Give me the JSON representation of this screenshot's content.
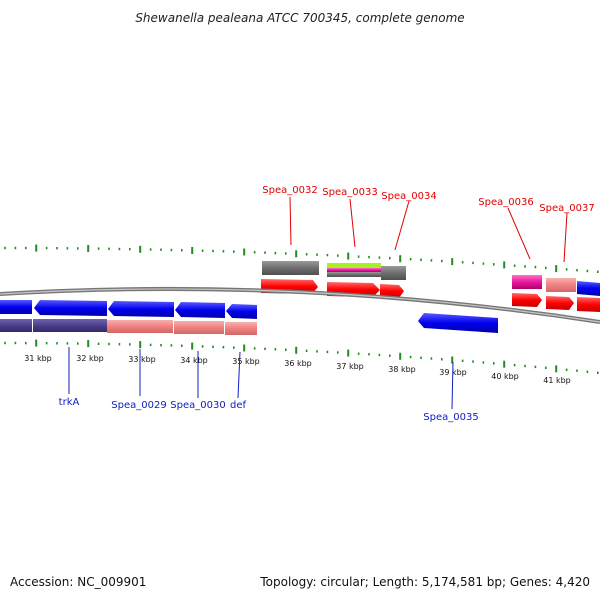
{
  "title": "Shewanella pealeana ATCC 700345, complete genome",
  "footer": {
    "accession": "Accession: NC_009901",
    "topology": "Topology: circular; Length: 5,174,581 bp; Genes: 4,420"
  },
  "colors": {
    "forward_cds": "#ff0000",
    "reverse_cds": "#0000ee",
    "backbone": "#808080",
    "tick": "#228b22",
    "label_forward": "#e00000",
    "label_reverse": "#1020c0",
    "grey_feature": "#6e6e6e",
    "salmon_feature": "#f08080",
    "purple_feature": "#4a3f8a",
    "magenta_feature": "#e8189a",
    "lime_feature": "#a8f020"
  },
  "tick_labels": [
    "31 kbp",
    "32 kbp",
    "33 kbp",
    "34 kbp",
    "35 kbp",
    "36 kbp",
    "37 kbp",
    "38 kbp",
    "39 kbp",
    "40 kbp",
    "41 kbp"
  ],
  "forward_genes": [
    "Spea_0032",
    "Spea_0033",
    "Spea_0034",
    "Spea_0036",
    "Spea_0037"
  ],
  "reverse_genes": [
    "trkA",
    "Spea_0029",
    "Spea_0030",
    "def",
    "Spea_0035"
  ]
}
